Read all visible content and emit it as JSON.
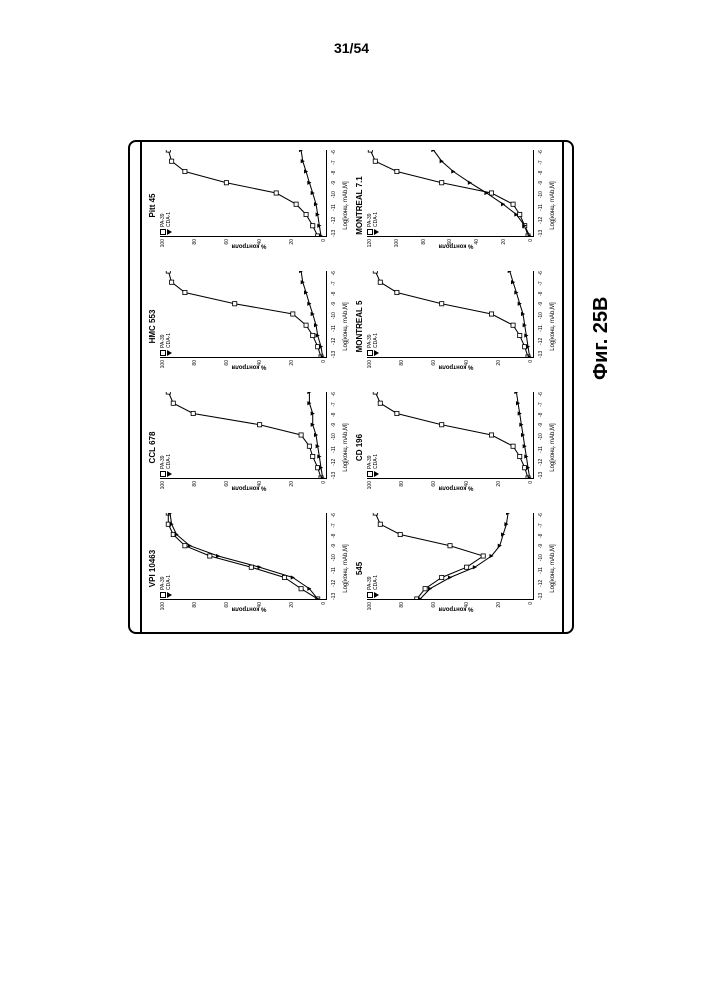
{
  "page_number": "31/54",
  "figure_label": "Фиг. 25B",
  "y_axis_label": "% контроля",
  "x_axis_label": "Log[конц. mAb,M]",
  "legend_series": [
    {
      "marker": "square",
      "label": "PA-39"
    },
    {
      "marker": "triangle",
      "label": "CDA-1"
    }
  ],
  "x_ticks": [
    "-13",
    "-12",
    "-11",
    "-10",
    "-9",
    "-8",
    "-7",
    "-6"
  ],
  "charts": [
    {
      "title": "VPI 10463",
      "y_ticks": [
        "100",
        "80",
        "60",
        "40",
        "20",
        "0"
      ],
      "pa39": [
        [
          0,
          5
        ],
        [
          12,
          15
        ],
        [
          25,
          25
        ],
        [
          37,
          45
        ],
        [
          50,
          70
        ],
        [
          62,
          85
        ],
        [
          75,
          92
        ],
        [
          87,
          95
        ],
        [
          100,
          95
        ]
      ],
      "cda1": [
        [
          0,
          5
        ],
        [
          12,
          10
        ],
        [
          25,
          20
        ],
        [
          37,
          40
        ],
        [
          50,
          65
        ],
        [
          62,
          82
        ],
        [
          75,
          90
        ],
        [
          87,
          93
        ],
        [
          100,
          94
        ]
      ]
    },
    {
      "title": "CCL 678",
      "y_ticks": [
        "100",
        "80",
        "60",
        "40",
        "20",
        "0"
      ],
      "pa39": [
        [
          0,
          3
        ],
        [
          12,
          5
        ],
        [
          25,
          8
        ],
        [
          37,
          10
        ],
        [
          50,
          15
        ],
        [
          62,
          40
        ],
        [
          75,
          80
        ],
        [
          87,
          92
        ],
        [
          100,
          95
        ]
      ],
      "cda1": [
        [
          0,
          2
        ],
        [
          12,
          3
        ],
        [
          25,
          4
        ],
        [
          37,
          5
        ],
        [
          50,
          6
        ],
        [
          62,
          8
        ],
        [
          75,
          8
        ],
        [
          87,
          10
        ],
        [
          100,
          10
        ]
      ]
    },
    {
      "title": "HMC 553",
      "y_ticks": [
        "100",
        "80",
        "60",
        "40",
        "20",
        "0"
      ],
      "pa39": [
        [
          0,
          3
        ],
        [
          12,
          5
        ],
        [
          25,
          8
        ],
        [
          37,
          12
        ],
        [
          50,
          20
        ],
        [
          62,
          55
        ],
        [
          75,
          85
        ],
        [
          87,
          93
        ],
        [
          100,
          95
        ]
      ],
      "cda1": [
        [
          0,
          2
        ],
        [
          12,
          3
        ],
        [
          25,
          5
        ],
        [
          37,
          6
        ],
        [
          50,
          8
        ],
        [
          62,
          10
        ],
        [
          75,
          12
        ],
        [
          87,
          14
        ],
        [
          100,
          15
        ]
      ]
    },
    {
      "title": "Pitt 45",
      "y_ticks": [
        "100",
        "80",
        "60",
        "40",
        "20",
        "0"
      ],
      "pa39": [
        [
          0,
          5
        ],
        [
          12,
          8
        ],
        [
          25,
          12
        ],
        [
          37,
          18
        ],
        [
          50,
          30
        ],
        [
          62,
          60
        ],
        [
          75,
          85
        ],
        [
          87,
          93
        ],
        [
          100,
          95
        ]
      ],
      "cda1": [
        [
          0,
          3
        ],
        [
          12,
          4
        ],
        [
          25,
          5
        ],
        [
          37,
          6
        ],
        [
          50,
          8
        ],
        [
          62,
          10
        ],
        [
          75,
          12
        ],
        [
          87,
          14
        ],
        [
          100,
          15
        ]
      ]
    },
    {
      "title": "545",
      "y_ticks": [
        "100",
        "80",
        "60",
        "40",
        "20",
        "0"
      ],
      "pa39": [
        [
          0,
          70
        ],
        [
          12,
          65
        ],
        [
          25,
          55
        ],
        [
          37,
          40
        ],
        [
          50,
          30
        ],
        [
          62,
          50
        ],
        [
          75,
          80
        ],
        [
          87,
          92
        ],
        [
          100,
          95
        ]
      ],
      "cda1": [
        [
          0,
          68
        ],
        [
          12,
          62
        ],
        [
          25,
          50
        ],
        [
          37,
          35
        ],
        [
          50,
          25
        ],
        [
          62,
          20
        ],
        [
          75,
          18
        ],
        [
          87,
          16
        ],
        [
          100,
          15
        ]
      ]
    },
    {
      "title": "CD 196",
      "y_ticks": [
        "100",
        "80",
        "60",
        "40",
        "20",
        "0"
      ],
      "pa39": [
        [
          0,
          3
        ],
        [
          12,
          5
        ],
        [
          25,
          8
        ],
        [
          37,
          12
        ],
        [
          50,
          25
        ],
        [
          62,
          55
        ],
        [
          75,
          82
        ],
        [
          87,
          92
        ],
        [
          100,
          95
        ]
      ],
      "cda1": [
        [
          0,
          2
        ],
        [
          12,
          3
        ],
        [
          25,
          4
        ],
        [
          37,
          5
        ],
        [
          50,
          6
        ],
        [
          62,
          7
        ],
        [
          75,
          8
        ],
        [
          87,
          9
        ],
        [
          100,
          10
        ]
      ]
    },
    {
      "title": "MONTREAL 5",
      "y_ticks": [
        "100",
        "80",
        "60",
        "40",
        "20",
        "0"
      ],
      "pa39": [
        [
          0,
          3
        ],
        [
          12,
          5
        ],
        [
          25,
          8
        ],
        [
          37,
          12
        ],
        [
          50,
          25
        ],
        [
          62,
          55
        ],
        [
          75,
          82
        ],
        [
          87,
          92
        ],
        [
          100,
          95
        ]
      ],
      "cda1": [
        [
          0,
          2
        ],
        [
          12,
          3
        ],
        [
          25,
          4
        ],
        [
          37,
          5
        ],
        [
          50,
          6
        ],
        [
          62,
          8
        ],
        [
          75,
          10
        ],
        [
          87,
          12
        ],
        [
          100,
          14
        ]
      ]
    },
    {
      "title": "MONTREAL 7.1",
      "y_ticks": [
        "120",
        "100",
        "80",
        "60",
        "40",
        "20",
        "0"
      ],
      "pa39": [
        [
          0,
          3
        ],
        [
          12,
          5
        ],
        [
          25,
          8
        ],
        [
          37,
          12
        ],
        [
          50,
          25
        ],
        [
          62,
          55
        ],
        [
          75,
          82
        ],
        [
          87,
          95
        ],
        [
          100,
          98
        ]
      ],
      "cda1": [
        [
          0,
          2
        ],
        [
          12,
          5
        ],
        [
          25,
          10
        ],
        [
          37,
          18
        ],
        [
          50,
          28
        ],
        [
          62,
          38
        ],
        [
          75,
          48
        ],
        [
          87,
          55
        ],
        [
          100,
          60
        ]
      ]
    }
  ],
  "colors": {
    "line": "#000000",
    "marker_fill_open": "#ffffff",
    "marker_fill_solid": "#000000",
    "background": "#ffffff"
  }
}
